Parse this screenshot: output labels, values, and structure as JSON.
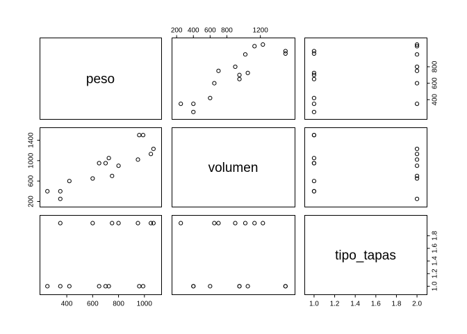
{
  "chart_data": {
    "type": "scatter",
    "kind": "pairs-matrix",
    "variables": [
      "peso",
      "volumen",
      "tipo_tapas"
    ],
    "diagonal_labels": [
      "peso",
      "volumen",
      "tipo_tapas"
    ],
    "observations": [
      {
        "peso": 250,
        "volumen": 400,
        "tipo_tapas": 1
      },
      {
        "peso": 350,
        "volumen": 250,
        "tipo_tapas": 2
      },
      {
        "peso": 350,
        "volumen": 400,
        "tipo_tapas": 1
      },
      {
        "peso": 420,
        "volumen": 600,
        "tipo_tapas": 1
      },
      {
        "peso": 600,
        "volumen": 650,
        "tipo_tapas": 2
      },
      {
        "peso": 650,
        "volumen": 950,
        "tipo_tapas": 1
      },
      {
        "peso": 700,
        "volumen": 950,
        "tipo_tapas": 1
      },
      {
        "peso": 725,
        "volumen": 1050,
        "tipo_tapas": 1
      },
      {
        "peso": 750,
        "volumen": 700,
        "tipo_tapas": 2
      },
      {
        "peso": 800,
        "volumen": 900,
        "tipo_tapas": 2
      },
      {
        "peso": 950,
        "volumen": 1020,
        "tipo_tapas": 2
      },
      {
        "peso": 960,
        "volumen": 1500,
        "tipo_tapas": 1
      },
      {
        "peso": 990,
        "volumen": 1500,
        "tipo_tapas": 1
      },
      {
        "peso": 1050,
        "volumen": 1130,
        "tipo_tapas": 2
      },
      {
        "peso": 1070,
        "volumen": 1230,
        "tipo_tapas": 2
      }
    ],
    "ranges": {
      "peso": [
        233,
        1087
      ],
      "volumen": [
        207,
        1543
      ],
      "tipo_tapas": [
        0.96,
        2.04
      ]
    },
    "axes": {
      "peso": {
        "ticks": [
          400,
          600,
          800,
          1000
        ],
        "labels": [
          "400",
          "600",
          "800",
          "1000"
        ],
        "side": "bottom"
      },
      "volumen_left": {
        "ticks": [
          200,
          600,
          1000,
          1400
        ],
        "labels": [
          "200",
          "600",
          "1000",
          "1400"
        ],
        "side": "left"
      },
      "volumen_top": {
        "ticks": [
          200,
          400,
          600,
          800,
          1200
        ],
        "labels": [
          "200",
          "400",
          "600",
          "800",
          "1200"
        ],
        "side": "top"
      },
      "peso_right": {
        "ticks": [
          400,
          600,
          800
        ],
        "labels": [
          "400",
          "600",
          "800"
        ],
        "side": "right"
      },
      "tipo_tapas_right": {
        "ticks": [
          1.0,
          1.2,
          1.4,
          1.6,
          1.8
        ],
        "labels": [
          "1.0",
          "1.2",
          "1.4",
          "1.6",
          "1.8"
        ],
        "side": "right"
      },
      "tipo_tapas_bottom": {
        "ticks": [
          1.0,
          1.2,
          1.4,
          1.6,
          1.8,
          2.0
        ],
        "labels": [
          "1.0",
          "1.2",
          "1.4",
          "1.6",
          "1.8",
          "2.0"
        ],
        "side": "bottom"
      }
    },
    "grid": false,
    "marker": "open-circle"
  }
}
